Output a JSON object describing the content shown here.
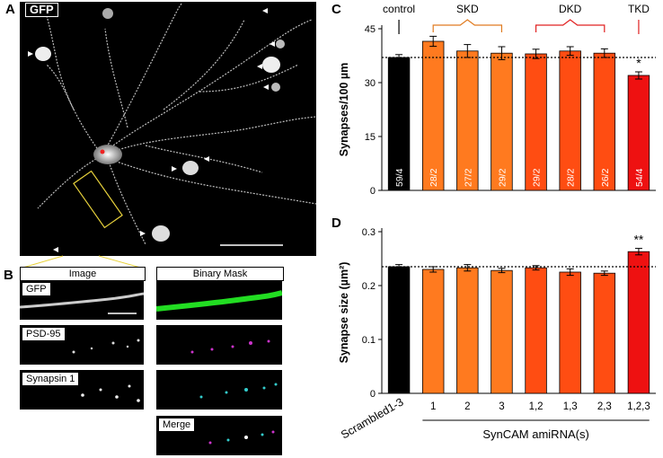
{
  "panels": {
    "A": {
      "letter": "A",
      "label": "GFP"
    },
    "B": {
      "letter": "B",
      "image_header": "Image",
      "mask_header": "Binary Mask",
      "strips": [
        "GFP",
        "PSD-95",
        "Synapsin 1",
        "Merge"
      ]
    },
    "C": {
      "letter": "C"
    },
    "D": {
      "letter": "D"
    }
  },
  "colors": {
    "black": "#000000",
    "skd": "#ff7a1f",
    "dkd": "#ff4d12",
    "tkd": "#ee1111",
    "skd_bracket": "#e07b20",
    "dkd_bracket": "#e02020"
  },
  "chart_data": [
    {
      "panel": "C",
      "type": "bar",
      "categories": [
        "Scrambled1-3",
        "1",
        "2",
        "3",
        "1,2",
        "1,3",
        "2,3",
        "1,2,3"
      ],
      "values": [
        37,
        41.5,
        38.8,
        38.2,
        38,
        38.8,
        38.2,
        32
      ],
      "errors": [
        0.8,
        1.4,
        1.8,
        1.8,
        1.3,
        1.2,
        1.2,
        1.0
      ],
      "bar_labels": [
        "59/4",
        "28/2",
        "27/2",
        "29/2",
        "29/2",
        "28/2",
        "26/2",
        "54/4"
      ],
      "groups": [
        {
          "name": "control",
          "from": 0,
          "to": 0
        },
        {
          "name": "SKD",
          "from": 1,
          "to": 3
        },
        {
          "name": "DKD",
          "from": 4,
          "to": 6
        },
        {
          "name": "TKD",
          "from": 7,
          "to": 7
        }
      ],
      "bar_colors": [
        "#000000",
        "#ff7a1f",
        "#ff7a1f",
        "#ff7a1f",
        "#ff4d12",
        "#ff4d12",
        "#ff4d12",
        "#ee1111"
      ],
      "reference_line": 37,
      "significance": [
        "",
        "",
        "",
        "",
        "",
        "",
        "",
        "*"
      ],
      "ylabel": "Synapses/100 µm",
      "ylim": [
        0,
        45
      ],
      "yticks": [
        0,
        15,
        30,
        45
      ],
      "xlabel": ""
    },
    {
      "panel": "D",
      "type": "bar",
      "categories": [
        "Scrambled1-3",
        "1",
        "2",
        "3",
        "1,2",
        "1,3",
        "2,3",
        "1,2,3"
      ],
      "values": [
        0.235,
        0.23,
        0.233,
        0.228,
        0.233,
        0.225,
        0.223,
        0.263
      ],
      "errors": [
        0.004,
        0.005,
        0.006,
        0.004,
        0.004,
        0.006,
        0.004,
        0.006
      ],
      "bar_colors": [
        "#000000",
        "#ff7a1f",
        "#ff7a1f",
        "#ff7a1f",
        "#ff4d12",
        "#ff4d12",
        "#ff4d12",
        "#ee1111"
      ],
      "reference_line": 0.235,
      "significance": [
        "",
        "",
        "",
        "",
        "",
        "",
        "",
        "**"
      ],
      "ylabel": "Synapse size (µm²)",
      "ylim": [
        0,
        0.3
      ],
      "yticks": [
        0,
        0.1,
        0.2,
        0.3
      ],
      "xlabel": "SynCAM amiRNA(s)"
    }
  ]
}
